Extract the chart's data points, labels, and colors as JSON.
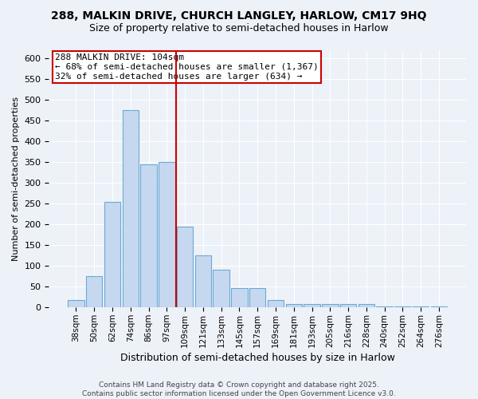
{
  "title1": "288, MALKIN DRIVE, CHURCH LANGLEY, HARLOW, CM17 9HQ",
  "title2": "Size of property relative to semi-detached houses in Harlow",
  "xlabel": "Distribution of semi-detached houses by size in Harlow",
  "ylabel": "Number of semi-detached properties",
  "categories": [
    "38sqm",
    "50sqm",
    "62sqm",
    "74sqm",
    "86sqm",
    "97sqm",
    "109sqm",
    "121sqm",
    "133sqm",
    "145sqm",
    "157sqm",
    "169sqm",
    "181sqm",
    "193sqm",
    "205sqm",
    "216sqm",
    "228sqm",
    "240sqm",
    "252sqm",
    "264sqm",
    "276sqm"
  ],
  "values": [
    18,
    75,
    255,
    475,
    345,
    350,
    195,
    125,
    90,
    47,
    47,
    18,
    8,
    8,
    8,
    8,
    8,
    3,
    3,
    3,
    3
  ],
  "bar_color": "#c5d8f0",
  "bar_edge_color": "#6aaad4",
  "vline_x": 6.0,
  "vline_color": "#cc0000",
  "annotation_title": "288 MALKIN DRIVE: 104sqm",
  "annotation_line1": "← 68% of semi-detached houses are smaller (1,367)",
  "annotation_line2": "32% of semi-detached houses are larger (634) →",
  "box_facecolor": "white",
  "box_edgecolor": "#cc0000",
  "ylim": [
    0,
    620
  ],
  "yticks": [
    0,
    50,
    100,
    150,
    200,
    250,
    300,
    350,
    400,
    450,
    500,
    550,
    600
  ],
  "footer1": "Contains HM Land Registry data © Crown copyright and database right 2025.",
  "footer2": "Contains public sector information licensed under the Open Government Licence v3.0.",
  "bg_color": "#edf1f8",
  "grid_color": "#ffffff",
  "title_fontsize": 10,
  "subtitle_fontsize": 9,
  "ylabel_fontsize": 8,
  "xlabel_fontsize": 9,
  "tick_fontsize": 8,
  "xtick_fontsize": 7.5,
  "footer_fontsize": 6.5,
  "annot_fontsize": 8
}
